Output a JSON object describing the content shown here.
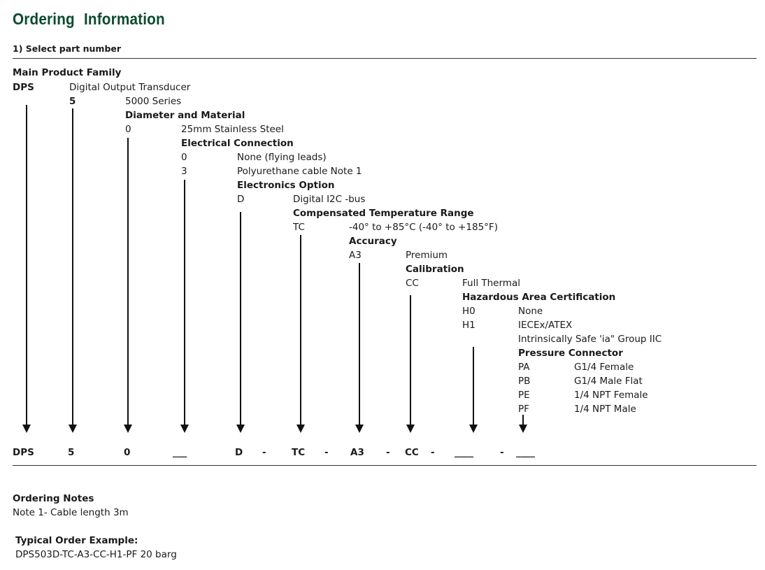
{
  "title": "Ordering Information",
  "step_label": "1) Select part number",
  "fields": {
    "main_family": {
      "heading": "Main Product Family",
      "code": "DPS",
      "desc": "Digital Output Transducer"
    },
    "series": {
      "code": "5",
      "desc": "5000 Series"
    },
    "diameter": {
      "heading": "Diameter and Material",
      "code": "0",
      "desc": "25mm Stainless Steel"
    },
    "electrical": {
      "heading": "Electrical Connection",
      "options": [
        {
          "code": "0",
          "desc": "None (flying leads)"
        },
        {
          "code": "3",
          "desc": "Polyurethane cable Note 1"
        }
      ]
    },
    "electronics": {
      "heading": "Electronics Option",
      "code": "D",
      "desc": "Digital I2C -bus"
    },
    "temperature": {
      "heading": "Compensated Temperature Range",
      "code": "TC",
      "desc": "-40° to +85°C (-40° to +185°F)"
    },
    "accuracy": {
      "heading": "Accuracy",
      "code": "A3",
      "desc": "Premium"
    },
    "calibration": {
      "heading": "Calibration",
      "code": "CC",
      "desc": "Full Thermal"
    },
    "hazardous": {
      "heading": "Hazardous Area Certification",
      "options": [
        {
          "code": "H0",
          "desc": "None"
        },
        {
          "code": "H1",
          "desc": "IECEx/ATEX"
        }
      ],
      "extra": "Intrinsically Safe 'ia\" Group IIC"
    },
    "pressure": {
      "heading": "Pressure Connector",
      "options": [
        {
          "code": "PA",
          "desc": "G1/4 Female"
        },
        {
          "code": "PB",
          "desc": "G1/4 Male Flat"
        },
        {
          "code": "PE",
          "desc": "1/4 NPT Female"
        },
        {
          "code": "PF",
          "desc": "1/4 NPT Male"
        }
      ]
    }
  },
  "part_number_row": {
    "c1": "DPS",
    "c2": "5",
    "c3": "0",
    "c4": "___",
    "c5": "D",
    "d1": "-",
    "c6": "TC",
    "d2": "-",
    "c7": "A3",
    "d3": "-",
    "c8": "CC",
    "d4": "-",
    "c9": "____",
    "d5": "-",
    "c10": "____"
  },
  "notes": {
    "heading": "Ordering Notes",
    "note1": "Note 1- Cable length 3m"
  },
  "example": {
    "heading": "Typical Order Example:",
    "value": "DPS503D-TC-A3-CC-H1-PF 20 barg"
  },
  "colors": {
    "title": "#0d4a2e",
    "text": "#1a1a1a",
    "rule": "#333333"
  }
}
